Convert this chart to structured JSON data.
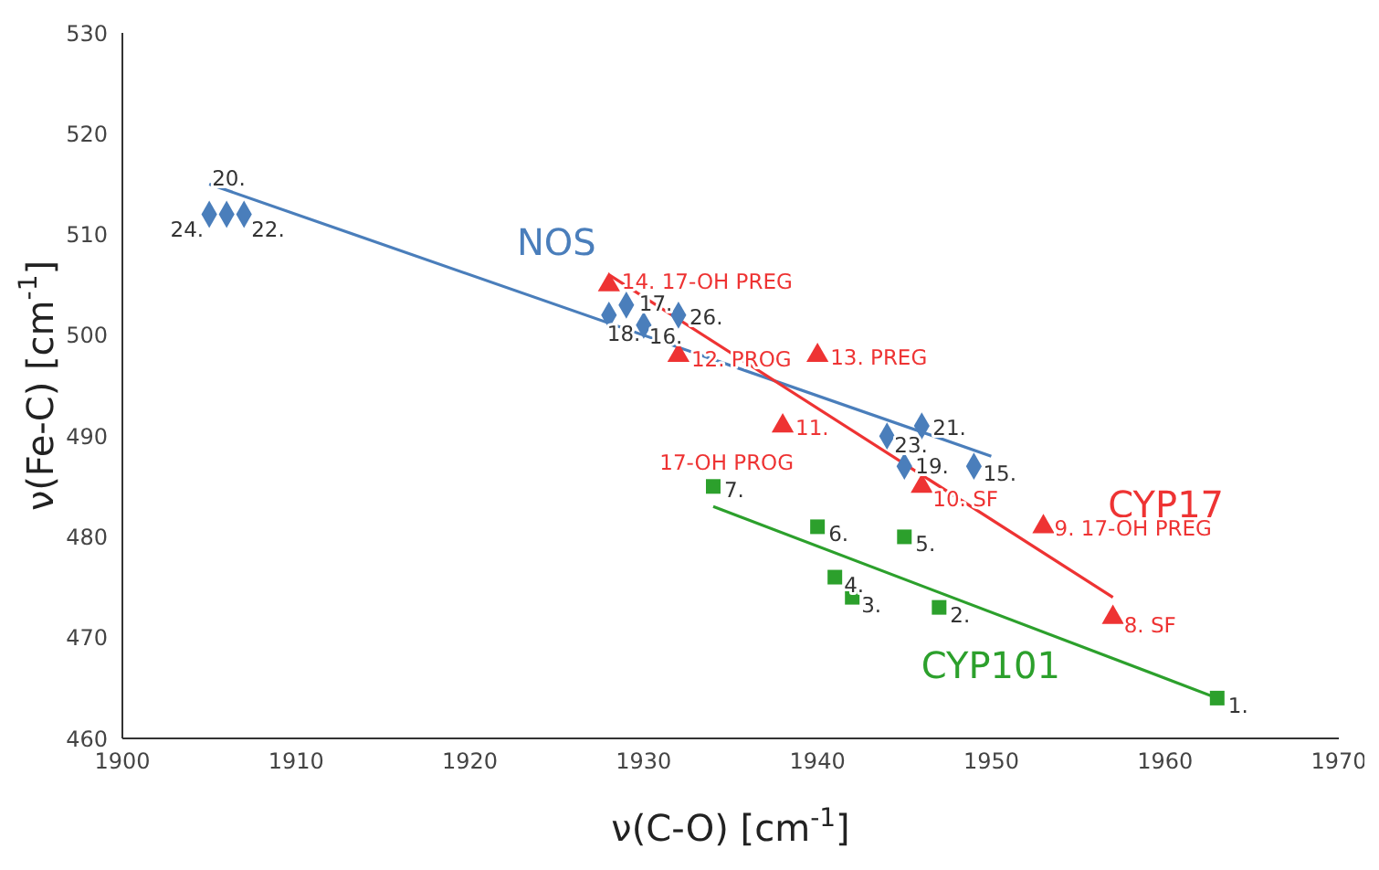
{
  "chart_data": {
    "type": "scatter",
    "xlabel": "ν(C-O) [cm$^{-1}$]",
    "ylabel": "ν(Fe-C) [cm$^{-1}$]",
    "xlim": [
      1900,
      1970
    ],
    "xticks": [
      1900,
      1910,
      1920,
      1930,
      1940,
      1950,
      1960,
      1970
    ],
    "ylim": [
      460,
      530
    ],
    "yticks": [
      460,
      470,
      480,
      490,
      500,
      510,
      520,
      530
    ],
    "grid": false,
    "legend": false,
    "series": [
      {
        "marker": "diamond",
        "color": "#4a7ebb",
        "x": [
          1905,
          1906,
          1907,
          1928,
          1929,
          1930,
          1932,
          1944,
          1946,
          1945,
          1949
        ],
        "values": [
          512,
          512,
          512,
          502,
          503,
          501,
          502,
          490,
          491,
          487,
          487
        ]
      },
      {
        "marker": "triangle",
        "color": "#ee3333",
        "x": [
          1928,
          1932,
          1940,
          1938,
          1946,
          1953,
          1957
        ],
        "values": [
          505,
          498,
          498,
          491,
          485,
          481,
          472
        ]
      },
      {
        "marker": "square",
        "color": "#2ca02c",
        "x": [
          1934,
          1940,
          1945,
          1941,
          1942,
          1947,
          1963
        ],
        "values": [
          485,
          481,
          480,
          476,
          474,
          473,
          464
        ]
      },
      {
        "type": "line",
        "name": "NOS",
        "color": "#4a7ebb",
        "x": [
          1905,
          1950
        ],
        "values": [
          515,
          488
        ]
      },
      {
        "type": "line",
        "name": "CYP17",
        "color": "#ee3333",
        "x": [
          1928,
          1957
        ],
        "values": [
          506,
          474
        ]
      },
      {
        "type": "line",
        "name": "CYP101",
        "color": "#2ca02c",
        "x": [
          1934,
          1963
        ],
        "values": [
          483,
          464
        ]
      }
    ],
    "annotations": [
      {
        "text": "24.",
        "x": 1905,
        "y": 512
      },
      {
        "text": "20.",
        "x": 1906,
        "y": 512
      },
      {
        "text": "22.",
        "x": 1907,
        "y": 512
      },
      {
        "text": "18.",
        "x": 1928,
        "y": 502
      },
      {
        "text": "17.",
        "x": 1929,
        "y": 503
      },
      {
        "text": "16.",
        "x": 1930,
        "y": 501
      },
      {
        "text": "26.",
        "x": 1932,
        "y": 502
      },
      {
        "text": "23.",
        "x": 1944,
        "y": 490
      },
      {
        "text": "21.",
        "x": 1946,
        "y": 491
      },
      {
        "text": "19.",
        "x": 1945,
        "y": 487
      },
      {
        "text": "15.",
        "x": 1949,
        "y": 487
      },
      {
        "text": "14. 17-OH PREG",
        "x": 1928,
        "y": 505
      },
      {
        "text": "12. PROG",
        "x": 1932,
        "y": 498
      },
      {
        "text": "13. PREG",
        "x": 1940,
        "y": 498
      },
      {
        "text": "11.",
        "x": 1938,
        "y": 491
      },
      {
        "text": "17-OH PROG",
        "x": 1938,
        "y": 491
      },
      {
        "text": "10. SF",
        "x": 1946,
        "y": 485
      },
      {
        "text": "9. 17-OH PREG",
        "x": 1953,
        "y": 481
      },
      {
        "text": "8. SF",
        "x": 1957,
        "y": 472
      },
      {
        "text": "7.",
        "x": 1934,
        "y": 485
      },
      {
        "text": "6.",
        "x": 1940,
        "y": 481
      },
      {
        "text": "5.",
        "x": 1945,
        "y": 480
      },
      {
        "text": "4.",
        "x": 1941,
        "y": 476
      },
      {
        "text": "3.",
        "x": 1942,
        "y": 474
      },
      {
        "text": "2.",
        "x": 1947,
        "y": 473
      },
      {
        "text": "1.",
        "x": 1963,
        "y": 464
      }
    ]
  }
}
